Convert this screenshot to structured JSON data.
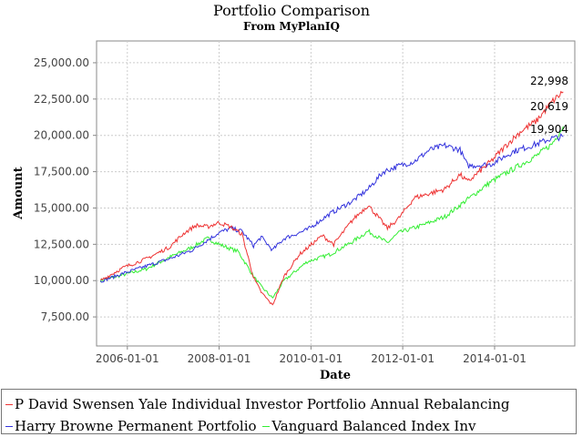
{
  "chart_data": {
    "type": "line",
    "title": "Portfolio Comparison",
    "subtitle": "From MyPlanIQ",
    "xlabel": "Date",
    "ylabel": "Amount",
    "x_ticks": [
      "2006-01-01",
      "2008-01-01",
      "2010-01-01",
      "2012-01-01",
      "2014-01-01"
    ],
    "y_ticks": [
      "7,500.00",
      "10,000.00",
      "12,500.00",
      "15,000.00",
      "17,500.00",
      "20,000.00",
      "22,500.00",
      "25,000.00"
    ],
    "xlim": [
      "2005-05-01",
      "2015-10-01"
    ],
    "ylim": [
      5500,
      26500
    ],
    "grid": true,
    "legend_position": "bottom",
    "series": [
      {
        "name": "P David Swensen Yale Individual Investor Portfolio Annual Rebalancing",
        "color": "#ee3333",
        "end_label": "22,998",
        "points": [
          [
            "2005-06-01",
            10000
          ],
          [
            "2005-12-01",
            10900
          ],
          [
            "2006-06-01",
            11500
          ],
          [
            "2006-12-01",
            12300
          ],
          [
            "2007-04-01",
            13300
          ],
          [
            "2007-07-01",
            13800
          ],
          [
            "2007-10-01",
            13700
          ],
          [
            "2008-01-01",
            14000
          ],
          [
            "2008-04-01",
            13700
          ],
          [
            "2008-07-01",
            13200
          ],
          [
            "2008-10-01",
            10200
          ],
          [
            "2008-12-01",
            9200
          ],
          [
            "2009-03-01",
            8300
          ],
          [
            "2009-06-01",
            10300
          ],
          [
            "2009-10-01",
            11800
          ],
          [
            "2010-04-01",
            13100
          ],
          [
            "2010-07-01",
            12500
          ],
          [
            "2010-12-01",
            14200
          ],
          [
            "2011-04-01",
            15200
          ],
          [
            "2011-09-01",
            13600
          ],
          [
            "2011-12-01",
            14300
          ],
          [
            "2012-04-01",
            15700
          ],
          [
            "2012-08-01",
            16000
          ],
          [
            "2012-12-01",
            16300
          ],
          [
            "2013-04-01",
            17300
          ],
          [
            "2013-06-01",
            16800
          ],
          [
            "2013-12-01",
            18200
          ],
          [
            "2014-04-01",
            19300
          ],
          [
            "2014-08-01",
            20300
          ],
          [
            "2014-12-01",
            21000
          ],
          [
            "2015-04-01",
            22300
          ],
          [
            "2015-07-01",
            22998
          ]
        ]
      },
      {
        "name": "Harry Browne Permanent Portfolio",
        "color": "#3333dd",
        "end_label": "19,904",
        "points": [
          [
            "2005-06-01",
            9950
          ],
          [
            "2005-12-01",
            10500
          ],
          [
            "2006-06-01",
            11000
          ],
          [
            "2006-12-01",
            11500
          ],
          [
            "2007-06-01",
            12100
          ],
          [
            "2008-01-01",
            13300
          ],
          [
            "2008-04-01",
            13600
          ],
          [
            "2008-07-01",
            13400
          ],
          [
            "2008-10-01",
            12400
          ],
          [
            "2008-12-01",
            13000
          ],
          [
            "2009-03-01",
            12100
          ],
          [
            "2009-06-01",
            12900
          ],
          [
            "2009-12-01",
            13500
          ],
          [
            "2010-06-01",
            14600
          ],
          [
            "2010-12-01",
            15500
          ],
          [
            "2011-04-01",
            16300
          ],
          [
            "2011-08-01",
            17500
          ],
          [
            "2011-12-01",
            17900
          ],
          [
            "2012-04-01",
            18200
          ],
          [
            "2012-08-01",
            19000
          ],
          [
            "2012-12-01",
            19300
          ],
          [
            "2013-04-01",
            19000
          ],
          [
            "2013-06-01",
            17900
          ],
          [
            "2013-12-01",
            18000
          ],
          [
            "2014-06-01",
            18900
          ],
          [
            "2014-12-01",
            19400
          ],
          [
            "2015-04-01",
            19800
          ],
          [
            "2015-07-01",
            19904
          ]
        ]
      },
      {
        "name": "Vanguard Balanced Index Inv",
        "color": "#33ee33",
        "end_label": "20,619",
        "points": [
          [
            "2005-06-01",
            10000
          ],
          [
            "2005-12-01",
            10400
          ],
          [
            "2006-06-01",
            10800
          ],
          [
            "2006-12-01",
            11600
          ],
          [
            "2007-06-01",
            12300
          ],
          [
            "2007-10-01",
            12900
          ],
          [
            "2008-01-01",
            12500
          ],
          [
            "2008-06-01",
            12000
          ],
          [
            "2008-10-01",
            10300
          ],
          [
            "2008-12-01",
            9600
          ],
          [
            "2009-03-01",
            8800
          ],
          [
            "2009-06-01",
            10000
          ],
          [
            "2009-12-01",
            11300
          ],
          [
            "2010-06-01",
            11800
          ],
          [
            "2010-12-01",
            12700
          ],
          [
            "2011-04-01",
            13400
          ],
          [
            "2011-09-01",
            12600
          ],
          [
            "2011-12-01",
            13300
          ],
          [
            "2012-06-01",
            13800
          ],
          [
            "2012-12-01",
            14400
          ],
          [
            "2013-06-01",
            15600
          ],
          [
            "2013-12-01",
            16800
          ],
          [
            "2014-06-01",
            17700
          ],
          [
            "2014-12-01",
            18600
          ],
          [
            "2015-04-01",
            19400
          ],
          [
            "2015-07-01",
            20619
          ]
        ]
      }
    ]
  }
}
